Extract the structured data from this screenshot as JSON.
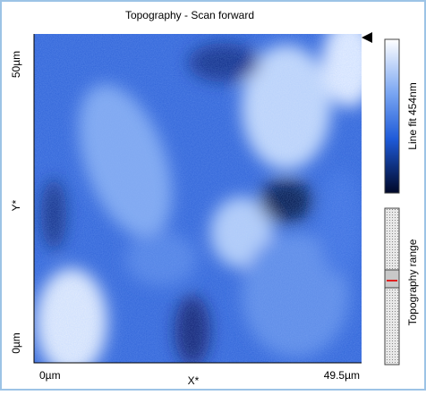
{
  "title": "Topography - Scan forward",
  "y_axis": {
    "top": "50µm",
    "label": "Y*",
    "bottom": "0µm"
  },
  "x_axis": {
    "left": "0µm",
    "label": "X*",
    "right": "49.5µm"
  },
  "colorbar_label": "Line fit 454nm",
  "range_label": "Topography range"
}
